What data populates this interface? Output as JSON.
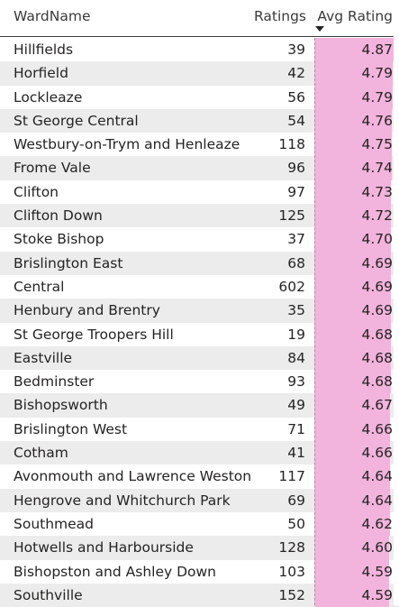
{
  "headers": {
    "ward": "WardName",
    "ratings": "Ratings",
    "avg": "Avg Rating"
  },
  "sort": {
    "column": "Avg Rating",
    "direction": "descending"
  },
  "bar_color": "#f2b3dc",
  "rows": [
    {
      "ward": "Hillfields",
      "ratings": "39",
      "avg": "4.87",
      "fill": 1.0
    },
    {
      "ward": "Horfield",
      "ratings": "42",
      "avg": "4.79",
      "fill": 0.984
    },
    {
      "ward": "Lockleaze",
      "ratings": "56",
      "avg": "4.79",
      "fill": 0.984
    },
    {
      "ward": "St George Central",
      "ratings": "54",
      "avg": "4.76",
      "fill": 0.977
    },
    {
      "ward": "Westbury-on-Trym and Henleaze",
      "ratings": "118",
      "avg": "4.75",
      "fill": 0.975
    },
    {
      "ward": "Frome Vale",
      "ratings": "96",
      "avg": "4.74",
      "fill": 0.973
    },
    {
      "ward": "Clifton",
      "ratings": "97",
      "avg": "4.73",
      "fill": 0.971
    },
    {
      "ward": "Clifton Down",
      "ratings": "125",
      "avg": "4.72",
      "fill": 0.969
    },
    {
      "ward": "Stoke Bishop",
      "ratings": "37",
      "avg": "4.70",
      "fill": 0.965
    },
    {
      "ward": "Brislington East",
      "ratings": "68",
      "avg": "4.69",
      "fill": 0.963
    },
    {
      "ward": "Central",
      "ratings": "602",
      "avg": "4.69",
      "fill": 0.963
    },
    {
      "ward": "Henbury and Brentry",
      "ratings": "35",
      "avg": "4.69",
      "fill": 0.963
    },
    {
      "ward": "St George Troopers Hill",
      "ratings": "19",
      "avg": "4.68",
      "fill": 0.961
    },
    {
      "ward": "Eastville",
      "ratings": "84",
      "avg": "4.68",
      "fill": 0.961
    },
    {
      "ward": "Bedminster",
      "ratings": "93",
      "avg": "4.68",
      "fill": 0.961
    },
    {
      "ward": "Bishopsworth",
      "ratings": "49",
      "avg": "4.67",
      "fill": 0.959
    },
    {
      "ward": "Brislington West",
      "ratings": "71",
      "avg": "4.66",
      "fill": 0.957
    },
    {
      "ward": "Cotham",
      "ratings": "41",
      "avg": "4.66",
      "fill": 0.957
    },
    {
      "ward": "Avonmouth and Lawrence Weston",
      "ratings": "117",
      "avg": "4.64",
      "fill": 0.953
    },
    {
      "ward": "Hengrove and Whitchurch Park",
      "ratings": "69",
      "avg": "4.64",
      "fill": 0.953
    },
    {
      "ward": "Southmead",
      "ratings": "50",
      "avg": "4.62",
      "fill": 0.949
    },
    {
      "ward": "Hotwells and Harbourside",
      "ratings": "128",
      "avg": "4.60",
      "fill": 0.945
    },
    {
      "ward": "Bishopston and Ashley Down",
      "ratings": "103",
      "avg": "4.59",
      "fill": 0.943
    },
    {
      "ward": "Southville",
      "ratings": "152",
      "avg": "4.59",
      "fill": 0.943
    }
  ]
}
